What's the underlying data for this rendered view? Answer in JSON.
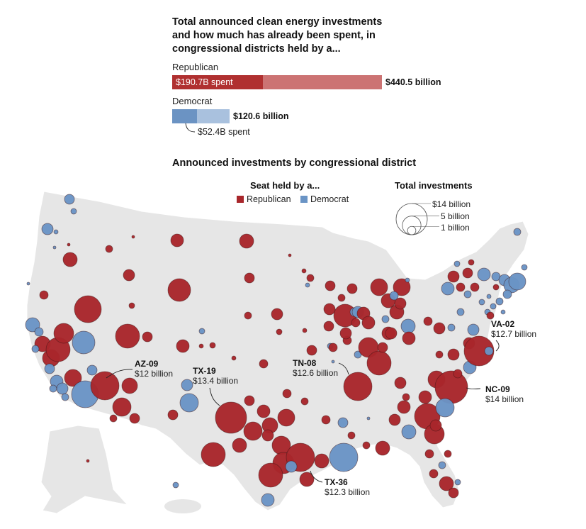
{
  "header": {
    "title": "Total announced clean energy investments and how much has already been spent, in congressional districts held by a..."
  },
  "summary_bars": {
    "unit": "billion USD",
    "max_total": 440.5,
    "republican": {
      "label": "Republican",
      "spent": 190.7,
      "total": 440.5,
      "spent_label": "$190.7B spent",
      "total_label": "$440.5 billion",
      "spent_color": "#b03030",
      "total_color": "#cc7373"
    },
    "democrat": {
      "label": "Democrat",
      "spent": 52.4,
      "total": 120.6,
      "spent_label": "$52.4B spent",
      "total_label": "$120.6 billion",
      "spent_color": "#6b93c3",
      "total_color": "#a9c1de"
    }
  },
  "map_section": {
    "title": "Announced investments by congressional district",
    "legend": {
      "party_heading": "Seat held by a...",
      "republican_label": "Republican",
      "democrat_label": "Democrat",
      "size_heading": "Total investments",
      "sizes": [
        {
          "value": 14,
          "label": "$14 billion"
        },
        {
          "value": 5,
          "label": "5 billion"
        },
        {
          "value": 1,
          "label": "1 billion"
        }
      ]
    },
    "colors": {
      "republican": "#a8262b",
      "democrat": "#6a94c5",
      "land": "#e6e6e6"
    },
    "callouts": [
      {
        "district": "AZ-09",
        "value_label": "$12 billion"
      },
      {
        "district": "TX-19",
        "value_label": "$13.4 billion"
      },
      {
        "district": "TN-08",
        "value_label": "$12.6 billion"
      },
      {
        "district": "VA-02",
        "value_label": "$12.7 billion"
      },
      {
        "district": "NC-09",
        "value_label": "$14 billion"
      },
      {
        "district": "TX-36",
        "value_label": "$12.3 billion"
      }
    ]
  },
  "chart_data": {
    "type": "scatter",
    "description_units": "bubble value = announced investment in billion USD",
    "highlighted_districts": [
      {
        "district": "AZ-09",
        "party": "Republican",
        "value": 12
      },
      {
        "district": "TX-19",
        "party": "Republican",
        "value": 13.4
      },
      {
        "district": "TN-08",
        "party": "Republican",
        "value": 12.6
      },
      {
        "district": "VA-02",
        "party": "Republican",
        "value": 12.7
      },
      {
        "district": "NC-09",
        "party": "Republican",
        "value": 14
      },
      {
        "district": "TX-36",
        "party": "Republican",
        "value": 12.3
      }
    ],
    "series": [
      {
        "name": "Republican",
        "spent": 190.7,
        "total": 440.5
      },
      {
        "name": "Democrat",
        "spent": 52.4,
        "total": 120.6
      }
    ]
  }
}
